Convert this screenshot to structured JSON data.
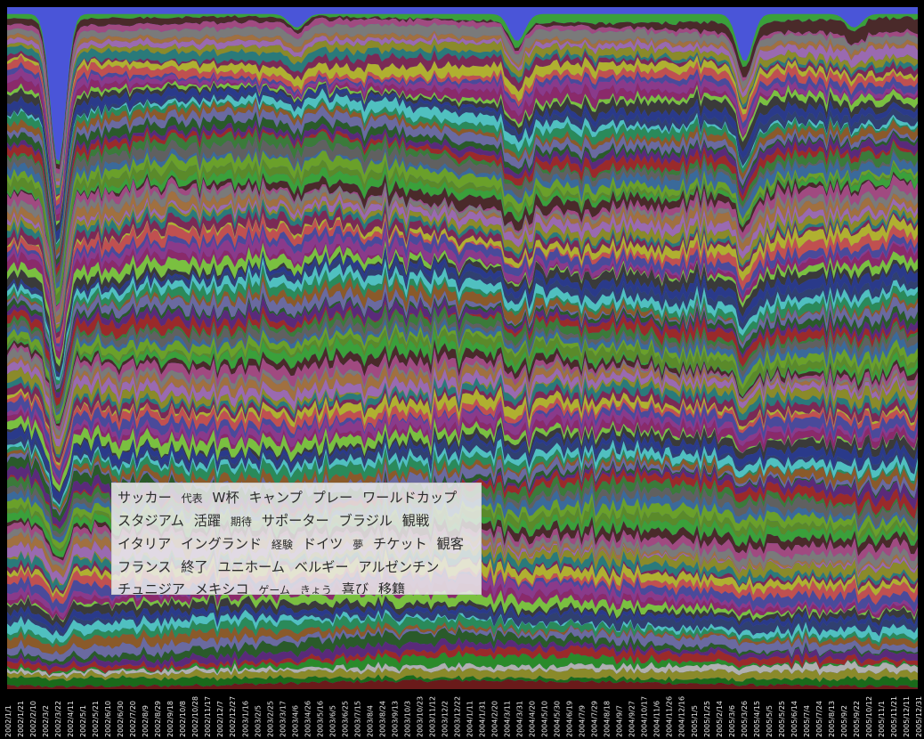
{
  "chart_data": {
    "type": "area",
    "stacked": true,
    "grid": false,
    "legend_placement": "bottom-left",
    "dates": [
      "2002/1/1",
      "2002/1/21",
      "2002/2/10",
      "2002/3/2",
      "2002/3/22",
      "2002/4/11",
      "2002/5/1",
      "2002/5/21",
      "2002/6/10",
      "2002/6/30",
      "2002/7/20",
      "2002/8/9",
      "2002/8/29",
      "2002/9/18",
      "2002/10/8",
      "2002/10/28",
      "2002/11/17",
      "2002/12/7",
      "2002/12/27",
      "2003/1/16",
      "2003/2/5",
      "2003/2/25",
      "2003/3/17",
      "2003/4/6",
      "2003/4/26",
      "2003/5/16",
      "2003/6/5",
      "2003/6/25",
      "2003/7/15",
      "2003/8/4",
      "2003/8/24",
      "2003/9/13",
      "2003/10/3",
      "2003/10/23",
      "2003/11/12",
      "2003/12/2",
      "2003/12/22",
      "2004/1/11",
      "2004/1/31",
      "2004/2/20",
      "2004/3/11",
      "2004/3/31",
      "2004/4/20",
      "2004/5/10",
      "2004/5/30",
      "2004/6/19",
      "2004/7/9",
      "2004/7/29",
      "2004/8/18",
      "2004/9/7",
      "2004/9/27",
      "2004/10/17",
      "2004/11/6",
      "2004/11/26",
      "2004/12/16",
      "2005/1/5",
      "2005/1/25",
      "2005/2/14",
      "2005/3/6",
      "2005/3/26",
      "2005/4/15",
      "2005/5/5",
      "2005/5/25",
      "2005/6/14",
      "2005/7/4",
      "2005/7/24",
      "2005/8/13",
      "2005/9/2",
      "2005/9/22",
      "2005/10/12",
      "2005/11/1",
      "2005/11/21",
      "2005/12/11",
      "2005/12/31"
    ],
    "x_tick_labels": [
      "2002/1/1",
      "2002/1/21",
      "2002/2/10",
      "2002/3/2",
      "2002/3/22",
      "2002/4/11",
      "2002/5/1",
      "2002/5/21",
      "2002/6/10",
      "2002/6/30",
      "2002/7/20",
      "2002/8/9",
      "2002/8/29",
      "2002/9/18",
      "2002/10/8",
      "2002/10/28",
      "2002/11/17",
      "2002/12/7",
      "2002/12/27",
      "2003/1/16",
      "2003/2/5",
      "2003/2/25",
      "2003/3/17",
      "2003/4/6",
      "2003/4/26",
      "2003/5/16",
      "2003/6/5",
      "2003/6/25",
      "2003/7/15",
      "2003/8/4",
      "2003/8/24",
      "2003/9/13",
      "2003/10/3",
      "2003/10/23",
      "2003/11/12",
      "2003/12/2",
      "2003/12/22",
      "2004/1/11",
      "2004/1/31",
      "2004/2/20",
      "2004/3/11",
      "2004/3/31",
      "2004/4/20",
      "2004/5/10",
      "2004/5/30",
      "2004/6/19",
      "2004/7/9",
      "2004/7/29",
      "2004/8/18",
      "2004/9/7",
      "2004/9/27",
      "2004/10/17",
      "2004/11/6",
      "2004/11/26",
      "2004/12/16",
      "2005/1/5",
      "2005/1/25",
      "2005/2/14",
      "2005/3/6",
      "2005/3/26",
      "2005/4/15",
      "2005/5/5",
      "2005/5/25",
      "2005/6/14",
      "2005/7/4",
      "2005/7/24",
      "2005/8/13",
      "2005/9/2",
      "2005/9/22",
      "2005/10/12",
      "2005/11/1",
      "2005/11/21",
      "2005/12/11",
      "2005/12/31"
    ],
    "ylim": [
      0,
      1
    ],
    "top_layer_color": "#4a55d8",
    "band_palette": [
      "#7a2a55",
      "#3b7a3a",
      "#8a3a8a",
      "#5a8a2a",
      "#2a3a8a",
      "#7a7a7a",
      "#8a5a2a",
      "#2a7a7a",
      "#9a2a2a",
      "#4a4a9a",
      "#6aa02a",
      "#3a3a3a",
      "#a04a80",
      "#2a8a5a",
      "#8a8a2a",
      "#5a2a7a",
      "#c05050",
      "#3a6a9a",
      "#7ac040",
      "#4a2a2a",
      "#50c0c0",
      "#9a6ab0",
      "#2a5a2a",
      "#b0b030",
      "#606060",
      "#8a2a6a",
      "#3aa03a",
      "#304070",
      "#a07040",
      "#6a6aa0"
    ],
    "bottom_layer_colors": [
      "#6a1a1a",
      "#1a6a1a",
      "#8a8a2a",
      "#b0b0b0",
      "#2a8a2a"
    ],
    "series": [
      {
        "name": "サッカー",
        "values": [
          0.05,
          0.055,
          0.06,
          0.058,
          0.054,
          0.062,
          0.066,
          0.06,
          0.058,
          0.055,
          0.052,
          0.05,
          0.049,
          0.051,
          0.053,
          0.052,
          0.05,
          0.049,
          0.048,
          0.047,
          0.049,
          0.05,
          0.052,
          0.055,
          0.054,
          0.053,
          0.052,
          0.05,
          0.049,
          0.048,
          0.047,
          0.048,
          0.05,
          0.051,
          0.052,
          0.05,
          0.049,
          0.048,
          0.047,
          0.046,
          0.047,
          0.048,
          0.05,
          0.052,
          0.054,
          0.056,
          0.055,
          0.053,
          0.051,
          0.05,
          0.049,
          0.048,
          0.047,
          0.046,
          0.045,
          0.046,
          0.047,
          0.048,
          0.049,
          0.05,
          0.051,
          0.052,
          0.051,
          0.05,
          0.049,
          0.048,
          0.047,
          0.046,
          0.045,
          0.044,
          0.043,
          0.042,
          0.041,
          0.04
        ]
      },
      {
        "name": "代表",
        "values": [
          0.03,
          0.033,
          0.036,
          0.034,
          0.031,
          0.038,
          0.041,
          0.037,
          0.035,
          0.033,
          0.031,
          0.03,
          0.029,
          0.031,
          0.032,
          0.031,
          0.03,
          0.029,
          0.028,
          0.028,
          0.029,
          0.03,
          0.031,
          0.033,
          0.032,
          0.031,
          0.03,
          0.029,
          0.029,
          0.028,
          0.028,
          0.029,
          0.03,
          0.031,
          0.031,
          0.03,
          0.029,
          0.028,
          0.028,
          0.027,
          0.028,
          0.029,
          0.03,
          0.031,
          0.032,
          0.033,
          0.032,
          0.031,
          0.03,
          0.03,
          0.029,
          0.028,
          0.028,
          0.027,
          0.027,
          0.028,
          0.028,
          0.029,
          0.029,
          0.03,
          0.03,
          0.031,
          0.03,
          0.03,
          0.029,
          0.028,
          0.028,
          0.027,
          0.027,
          0.026,
          0.026,
          0.025,
          0.025,
          0.024
        ]
      },
      {
        "name": "W杯",
        "values": [
          0.04,
          0.046,
          0.052,
          0.05,
          0.045,
          0.07,
          0.09,
          0.08,
          0.07,
          0.06,
          0.05,
          0.042,
          0.038,
          0.036,
          0.034,
          0.033,
          0.032,
          0.031,
          0.03,
          0.029,
          0.029,
          0.03,
          0.03,
          0.031,
          0.031,
          0.03,
          0.03,
          0.029,
          0.029,
          0.028,
          0.028,
          0.028,
          0.029,
          0.029,
          0.03,
          0.029,
          0.029,
          0.028,
          0.028,
          0.028,
          0.029,
          0.03,
          0.031,
          0.033,
          0.035,
          0.038,
          0.04,
          0.039,
          0.037,
          0.035,
          0.034,
          0.033,
          0.032,
          0.031,
          0.031,
          0.032,
          0.033,
          0.034,
          0.035,
          0.036,
          0.037,
          0.038,
          0.039,
          0.04,
          0.041,
          0.042,
          0.043,
          0.044,
          0.045,
          0.046,
          0.047,
          0.048,
          0.049,
          0.05
        ]
      }
    ]
  },
  "legend": {
    "keywords": [
      {
        "text": "サッカー",
        "color": "#2b2b2b"
      },
      {
        "text": "代表",
        "color": "#2b2b2b",
        "small": true
      },
      {
        "text": "W杯",
        "color": "#2b2b2b"
      },
      {
        "text": "キャンプ",
        "color": "#2b2b2b"
      },
      {
        "text": "プレー",
        "color": "#2b2b2b"
      },
      {
        "text": "ワールドカップ",
        "color": "#2b2b2b"
      },
      {
        "text": "スタジアム",
        "color": "#2b2b2b"
      },
      {
        "text": "活躍",
        "color": "#2b2b2b"
      },
      {
        "text": "期待",
        "color": "#2b2b2b",
        "small": true
      },
      {
        "text": "サポーター",
        "color": "#2b2b2b"
      },
      {
        "text": "ブラジル",
        "color": "#2b2b2b"
      },
      {
        "text": "観戦",
        "color": "#2b2b2b"
      },
      {
        "text": "イタリア",
        "color": "#2b2b2b"
      },
      {
        "text": "イングランド",
        "color": "#2b2b2b"
      },
      {
        "text": "経験",
        "color": "#2b2b2b",
        "small": true
      },
      {
        "text": "ドイツ",
        "color": "#2b2b2b"
      },
      {
        "text": "夢",
        "color": "#2b2b2b",
        "small": true
      },
      {
        "text": "チケット",
        "color": "#2b2b2b"
      },
      {
        "text": "観客",
        "color": "#2b2b2b"
      },
      {
        "text": "フランス",
        "color": "#2b2b2b"
      },
      {
        "text": "終了",
        "color": "#2b2b2b"
      },
      {
        "text": "ユニホーム",
        "color": "#2b2b2b"
      },
      {
        "text": "ベルギー",
        "color": "#2b2b2b"
      },
      {
        "text": "アルゼンチン",
        "color": "#2b2b2b"
      },
      {
        "text": "チュニジア",
        "color": "#2b2b2b"
      },
      {
        "text": "メキシコ",
        "color": "#2b2b2b"
      },
      {
        "text": "ゲーム",
        "color": "#2b2b2b",
        "small": true
      },
      {
        "text": "きょう",
        "color": "#2b2b2b",
        "small": true
      },
      {
        "text": "喜び",
        "color": "#2b2b2b"
      },
      {
        "text": "移籍",
        "color": "#2b2b2b"
      }
    ]
  }
}
